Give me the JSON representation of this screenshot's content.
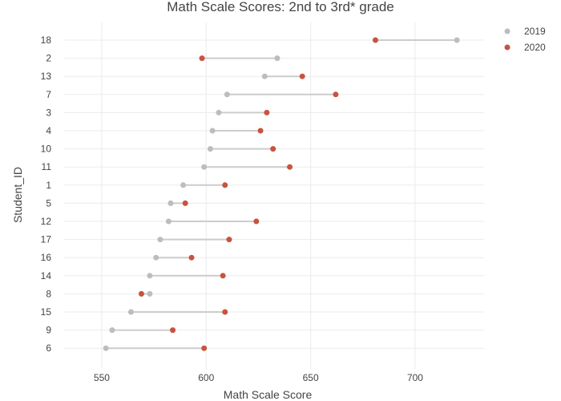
{
  "chart_data": {
    "type": "scatter",
    "subtype": "dumbbell",
    "title": "Math Scale Scores: 2nd to 3rd* grade",
    "xlabel": "Math Scale Score",
    "ylabel": "Student_ID",
    "xlim": [
      532,
      733
    ],
    "xticks": [
      550,
      600,
      650,
      700
    ],
    "grid": true,
    "legend_position": "top-right",
    "categories": [
      "18",
      "2",
      "13",
      "7",
      "3",
      "4",
      "10",
      "11",
      "1",
      "5",
      "12",
      "17",
      "16",
      "14",
      "8",
      "15",
      "9",
      "6"
    ],
    "series": [
      {
        "name": "2019",
        "color": "#bdbdbd",
        "values": [
          720,
          634,
          628,
          610,
          606,
          603,
          602,
          599,
          589,
          583,
          582,
          578,
          576,
          573,
          573,
          564,
          555,
          552
        ]
      },
      {
        "name": "2020",
        "color": "#c9533f",
        "values": [
          681,
          598,
          646,
          662,
          629,
          626,
          632,
          640,
          609,
          590,
          624,
          611,
          593,
          608,
          569,
          609,
          584,
          599
        ]
      }
    ]
  }
}
